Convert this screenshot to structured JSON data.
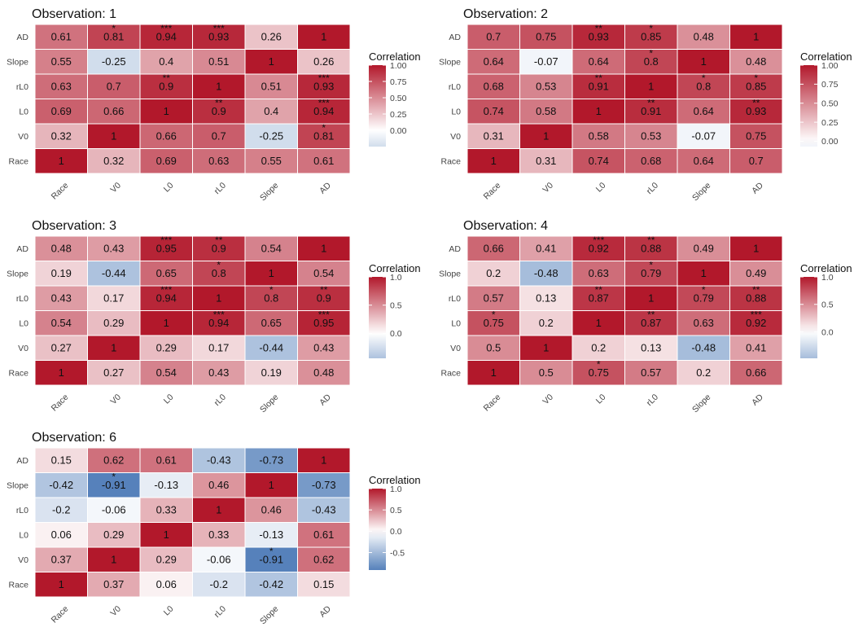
{
  "figure": {
    "legend_title": "Correlation",
    "color_scale": {
      "negative": "#4575b4",
      "zero": "#ffffff",
      "positive": "#b2182b"
    },
    "text_color": "#111111",
    "axis_label_color": "#444444"
  },
  "chart_data": [
    {
      "type": "heatmap",
      "title": "Observation: 1",
      "x_labels": [
        "Race",
        "V0",
        "L0",
        "rL0",
        "Slope",
        "AD"
      ],
      "y_labels_top_to_bottom": [
        "AD",
        "Slope",
        "rL0",
        "L0",
        "V0",
        "Race"
      ],
      "values": [
        [
          0.61,
          0.81,
          0.94,
          0.93,
          0.26,
          1
        ],
        [
          0.55,
          -0.25,
          0.4,
          0.51,
          1,
          0.26
        ],
        [
          0.63,
          0.7,
          0.9,
          1,
          0.51,
          0.93
        ],
        [
          0.69,
          0.66,
          1,
          0.9,
          0.4,
          0.94
        ],
        [
          0.32,
          1,
          0.66,
          0.7,
          -0.25,
          0.81
        ],
        [
          1,
          0.32,
          0.69,
          0.63,
          0.55,
          0.61
        ]
      ],
      "labels": [
        [
          "0.61",
          "0.81",
          "0.94",
          "0.93",
          "0.26",
          "1"
        ],
        [
          "0.55",
          "-0.25",
          "0.4",
          "0.51",
          "1",
          "0.26"
        ],
        [
          "0.63",
          "0.7",
          "0.9",
          "1",
          "0.51",
          "0.93"
        ],
        [
          "0.69",
          "0.66",
          "1",
          "0.9",
          "0.4",
          "0.94"
        ],
        [
          "0.32",
          "1",
          "0.66",
          "0.7",
          "-0.25",
          "0.81"
        ],
        [
          "1",
          "0.32",
          "0.69",
          "0.63",
          "0.55",
          "0.61"
        ]
      ],
      "stars": [
        [
          "",
          "*",
          "***",
          "***",
          "",
          ""
        ],
        [
          "",
          "",
          "",
          "",
          "",
          ""
        ],
        [
          "",
          "",
          "**",
          "",
          "",
          "***"
        ],
        [
          "",
          "",
          "",
          "**",
          "",
          "***"
        ],
        [
          "",
          "",
          "",
          "",
          "",
          "*"
        ],
        [
          "",
          "",
          "",
          "",
          "",
          ""
        ]
      ],
      "legend_range": [
        -0.25,
        1.0
      ],
      "legend_ticks": [
        "1.00",
        "0.75",
        "0.50",
        "0.25",
        "0.00"
      ],
      "legend_tick_values": [
        1.0,
        0.75,
        0.5,
        0.25,
        0.0
      ]
    },
    {
      "type": "heatmap",
      "title": "Observation: 2",
      "x_labels": [
        "Race",
        "V0",
        "L0",
        "rL0",
        "Slope",
        "AD"
      ],
      "y_labels_top_to_bottom": [
        "AD",
        "Slope",
        "rL0",
        "L0",
        "V0",
        "Race"
      ],
      "values": [
        [
          0.7,
          0.75,
          0.93,
          0.85,
          0.48,
          1
        ],
        [
          0.64,
          -0.07,
          0.64,
          0.8,
          1,
          0.48
        ],
        [
          0.68,
          0.53,
          0.91,
          1,
          0.8,
          0.85
        ],
        [
          0.74,
          0.58,
          1,
          0.91,
          0.64,
          0.93
        ],
        [
          0.31,
          1,
          0.58,
          0.53,
          -0.07,
          0.75
        ],
        [
          1,
          0.31,
          0.74,
          0.68,
          0.64,
          0.7
        ]
      ],
      "labels": [
        [
          "0.7",
          "0.75",
          "0.93",
          "0.85",
          "0.48",
          "1"
        ],
        [
          "0.64",
          "-0.07",
          "0.64",
          "0.8",
          "1",
          "0.48"
        ],
        [
          "0.68",
          "0.53",
          "0.91",
          "1",
          "0.8",
          "0.85"
        ],
        [
          "0.74",
          "0.58",
          "1",
          "0.91",
          "0.64",
          "0.93"
        ],
        [
          "0.31",
          "1",
          "0.58",
          "0.53",
          "-0.07",
          "0.75"
        ],
        [
          "1",
          "0.31",
          "0.74",
          "0.68",
          "0.64",
          "0.7"
        ]
      ],
      "stars": [
        [
          "",
          "",
          "**",
          "*",
          "",
          ""
        ],
        [
          "",
          "",
          "",
          "*",
          "",
          ""
        ],
        [
          "",
          "",
          "**",
          "",
          "*",
          "*"
        ],
        [
          "",
          "",
          "",
          "**",
          "",
          "**"
        ],
        [
          "",
          "",
          "",
          "",
          "",
          ""
        ],
        [
          "",
          "",
          "",
          "",
          "",
          ""
        ]
      ],
      "legend_range": [
        -0.07,
        1.0
      ],
      "legend_ticks": [
        "1.00",
        "0.75",
        "0.50",
        "0.25",
        "0.00"
      ],
      "legend_tick_values": [
        1.0,
        0.75,
        0.5,
        0.25,
        0.0
      ]
    },
    {
      "type": "heatmap",
      "title": "Observation: 3",
      "x_labels": [
        "Race",
        "V0",
        "L0",
        "rL0",
        "Slope",
        "AD"
      ],
      "y_labels_top_to_bottom": [
        "AD",
        "Slope",
        "rL0",
        "L0",
        "V0",
        "Race"
      ],
      "values": [
        [
          0.48,
          0.43,
          0.95,
          0.9,
          0.54,
          1
        ],
        [
          0.19,
          -0.44,
          0.65,
          0.8,
          1,
          0.54
        ],
        [
          0.43,
          0.17,
          0.94,
          1,
          0.8,
          0.9
        ],
        [
          0.54,
          0.29,
          1,
          0.94,
          0.65,
          0.95
        ],
        [
          0.27,
          1,
          0.29,
          0.17,
          -0.44,
          0.43
        ],
        [
          1,
          0.27,
          0.54,
          0.43,
          0.19,
          0.48
        ]
      ],
      "labels": [
        [
          "0.48",
          "0.43",
          "0.95",
          "0.9",
          "0.54",
          "1"
        ],
        [
          "0.19",
          "-0.44",
          "0.65",
          "0.8",
          "1",
          "0.54"
        ],
        [
          "0.43",
          "0.17",
          "0.94",
          "1",
          "0.8",
          "0.9"
        ],
        [
          "0.54",
          "0.29",
          "1",
          "0.94",
          "0.65",
          "0.95"
        ],
        [
          "0.27",
          "1",
          "0.29",
          "0.17",
          "-0.44",
          "0.43"
        ],
        [
          "1",
          "0.27",
          "0.54",
          "0.43",
          "0.19",
          "0.48"
        ]
      ],
      "stars": [
        [
          "",
          "",
          "***",
          "**",
          "",
          ""
        ],
        [
          "",
          "",
          "",
          "*",
          "",
          ""
        ],
        [
          "",
          "",
          "***",
          "",
          "*",
          "**"
        ],
        [
          "",
          "",
          "",
          "***",
          "",
          "***"
        ],
        [
          "",
          "",
          "",
          "",
          "",
          ""
        ],
        [
          "",
          "",
          "",
          "",
          "",
          ""
        ]
      ],
      "legend_range": [
        -0.44,
        1.0
      ],
      "legend_ticks": [
        "1.0",
        "0.5",
        "0.0"
      ],
      "legend_tick_values": [
        1.0,
        0.5,
        0.0
      ]
    },
    {
      "type": "heatmap",
      "title": "Observation: 4",
      "x_labels": [
        "Race",
        "V0",
        "L0",
        "rL0",
        "Slope",
        "AD"
      ],
      "y_labels_top_to_bottom": [
        "AD",
        "Slope",
        "rL0",
        "L0",
        "V0",
        "Race"
      ],
      "values": [
        [
          0.66,
          0.41,
          0.92,
          0.88,
          0.49,
          1
        ],
        [
          0.2,
          -0.48,
          0.63,
          0.79,
          1,
          0.49
        ],
        [
          0.57,
          0.13,
          0.87,
          1,
          0.79,
          0.88
        ],
        [
          0.75,
          0.2,
          1,
          0.87,
          0.63,
          0.92
        ],
        [
          0.5,
          1,
          0.2,
          0.13,
          -0.48,
          0.41
        ],
        [
          1,
          0.5,
          0.75,
          0.57,
          0.2,
          0.66
        ]
      ],
      "labels": [
        [
          "0.66",
          "0.41",
          "0.92",
          "0.88",
          "0.49",
          "1"
        ],
        [
          "0.2",
          "-0.48",
          "0.63",
          "0.79",
          "1",
          "0.49"
        ],
        [
          "0.57",
          "0.13",
          "0.87",
          "1",
          "0.79",
          "0.88"
        ],
        [
          "0.75",
          "0.2",
          "1",
          "0.87",
          "0.63",
          "0.92"
        ],
        [
          "0.5",
          "1",
          "0.2",
          "0.13",
          "-0.48",
          "0.41"
        ],
        [
          "1",
          "0.5",
          "0.75",
          "0.57",
          "0.2",
          "0.66"
        ]
      ],
      "stars": [
        [
          "",
          "",
          "***",
          "**",
          "",
          ""
        ],
        [
          "",
          "",
          "",
          "*",
          "",
          ""
        ],
        [
          "",
          "",
          "**",
          "",
          "*",
          "**"
        ],
        [
          "*",
          "",
          "",
          "**",
          "",
          "***"
        ],
        [
          "",
          "",
          "",
          "",
          "",
          ""
        ],
        [
          "",
          "",
          "*",
          "",
          "",
          ""
        ]
      ],
      "legend_range": [
        -0.48,
        1.0
      ],
      "legend_ticks": [
        "1.0",
        "0.5",
        "0.0"
      ],
      "legend_tick_values": [
        1.0,
        0.5,
        0.0
      ]
    },
    {
      "type": "heatmap",
      "title": "Observation: 6",
      "x_labels": [
        "Race",
        "V0",
        "L0",
        "rL0",
        "Slope",
        "AD"
      ],
      "y_labels_top_to_bottom": [
        "AD",
        "Slope",
        "rL0",
        "L0",
        "V0",
        "Race"
      ],
      "values": [
        [
          0.15,
          0.62,
          0.61,
          -0.43,
          -0.73,
          1
        ],
        [
          -0.42,
          -0.91,
          -0.13,
          0.46,
          1,
          -0.73
        ],
        [
          -0.2,
          -0.06,
          0.33,
          1,
          0.46,
          -0.43
        ],
        [
          0.06,
          0.29,
          1,
          0.33,
          -0.13,
          0.61
        ],
        [
          0.37,
          1,
          0.29,
          -0.06,
          -0.91,
          0.62
        ],
        [
          1,
          0.37,
          0.06,
          -0.2,
          -0.42,
          0.15
        ]
      ],
      "labels": [
        [
          "0.15",
          "0.62",
          "0.61",
          "-0.43",
          "-0.73",
          "1"
        ],
        [
          "-0.42",
          "-0.91",
          "-0.13",
          "0.46",
          "1",
          "-0.73"
        ],
        [
          "-0.2",
          "-0.06",
          "0.33",
          "1",
          "0.46",
          "-0.43"
        ],
        [
          "0.06",
          "0.29",
          "1",
          "0.33",
          "-0.13",
          "0.61"
        ],
        [
          "0.37",
          "1",
          "0.29",
          "-0.06",
          "-0.91",
          "0.62"
        ],
        [
          "1",
          "0.37",
          "0.06",
          "-0.2",
          "-0.42",
          "0.15"
        ]
      ],
      "stars": [
        [
          "",
          "",
          "",
          "",
          "",
          ""
        ],
        [
          "",
          "*",
          "",
          "",
          "",
          ""
        ],
        [
          "",
          "",
          "",
          "",
          "",
          ""
        ],
        [
          "",
          "",
          "",
          "",
          "",
          ""
        ],
        [
          "",
          "",
          "",
          "",
          "*",
          ""
        ],
        [
          "",
          "",
          "",
          "",
          "",
          ""
        ]
      ],
      "legend_range": [
        -0.91,
        1.0
      ],
      "legend_ticks": [
        "1.0",
        "0.5",
        "0.0",
        "-0.5"
      ],
      "legend_tick_values": [
        1.0,
        0.5,
        0.0,
        -0.5
      ]
    }
  ]
}
